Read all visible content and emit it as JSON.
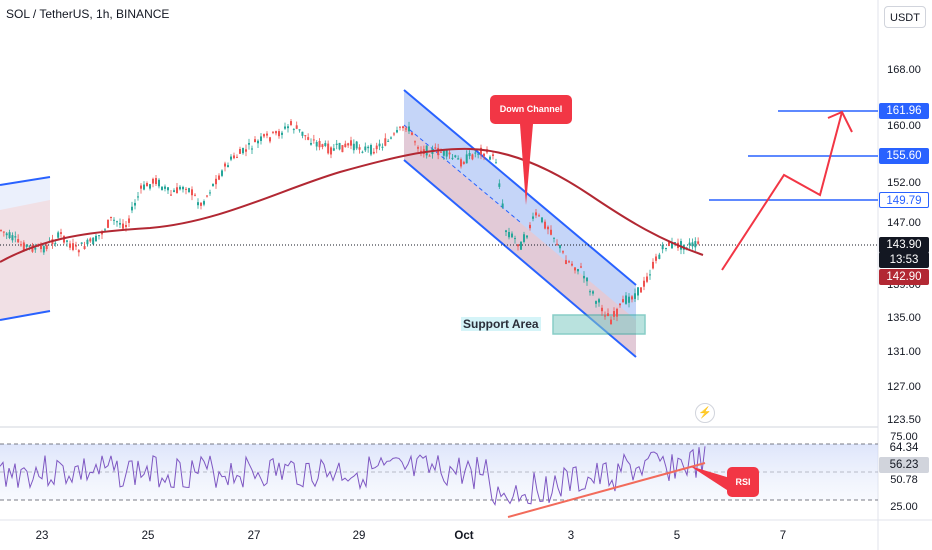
{
  "header": {
    "title": "SOL / TetherUS, 1h, BINANCE",
    "currency": "USDT"
  },
  "price_axis": {
    "ticks": [
      "168.00",
      "160.00",
      "152.00",
      "147.00",
      "139.00",
      "135.00",
      "131.00",
      "127.00",
      "123.50"
    ],
    "tags": [
      {
        "label": "161.96",
        "bg": "#2962ff",
        "fg": "#ffffff"
      },
      {
        "label": "155.60",
        "bg": "#2962ff",
        "fg": "#ffffff"
      },
      {
        "label": "149.79",
        "bg": "#ffffff",
        "fg": "#2962ff",
        "border": "#2962ff"
      },
      {
        "label": "143.90",
        "bg": "#131722",
        "fg": "#ffffff"
      },
      {
        "label": "13:53",
        "bg": "#131722",
        "fg": "#ffffff"
      },
      {
        "label": "142.90",
        "bg": "#b22833",
        "fg": "#ffffff"
      }
    ]
  },
  "rsi_axis": {
    "ticks": [
      "75.00",
      "50.78",
      "25.00"
    ],
    "tags": [
      {
        "label": "64.34",
        "bg": "#ffffff",
        "fg": "#131722"
      },
      {
        "label": "56.23",
        "bg": "#d1d4dc",
        "fg": "#131722"
      }
    ]
  },
  "time_axis": {
    "labels": [
      "23",
      "25",
      "27",
      "29",
      "Oct",
      "3",
      "5",
      "7"
    ]
  },
  "annotations": {
    "down_channel": "Down Channel",
    "support": "Support Area",
    "rsi": "RSI"
  },
  "colors": {
    "bull": "#26a69a",
    "bear": "#ef5350",
    "ma": "#b22833",
    "blue": "#2962ff",
    "red": "#f23645"
  },
  "icons": {
    "alert": "flash-icon"
  }
}
